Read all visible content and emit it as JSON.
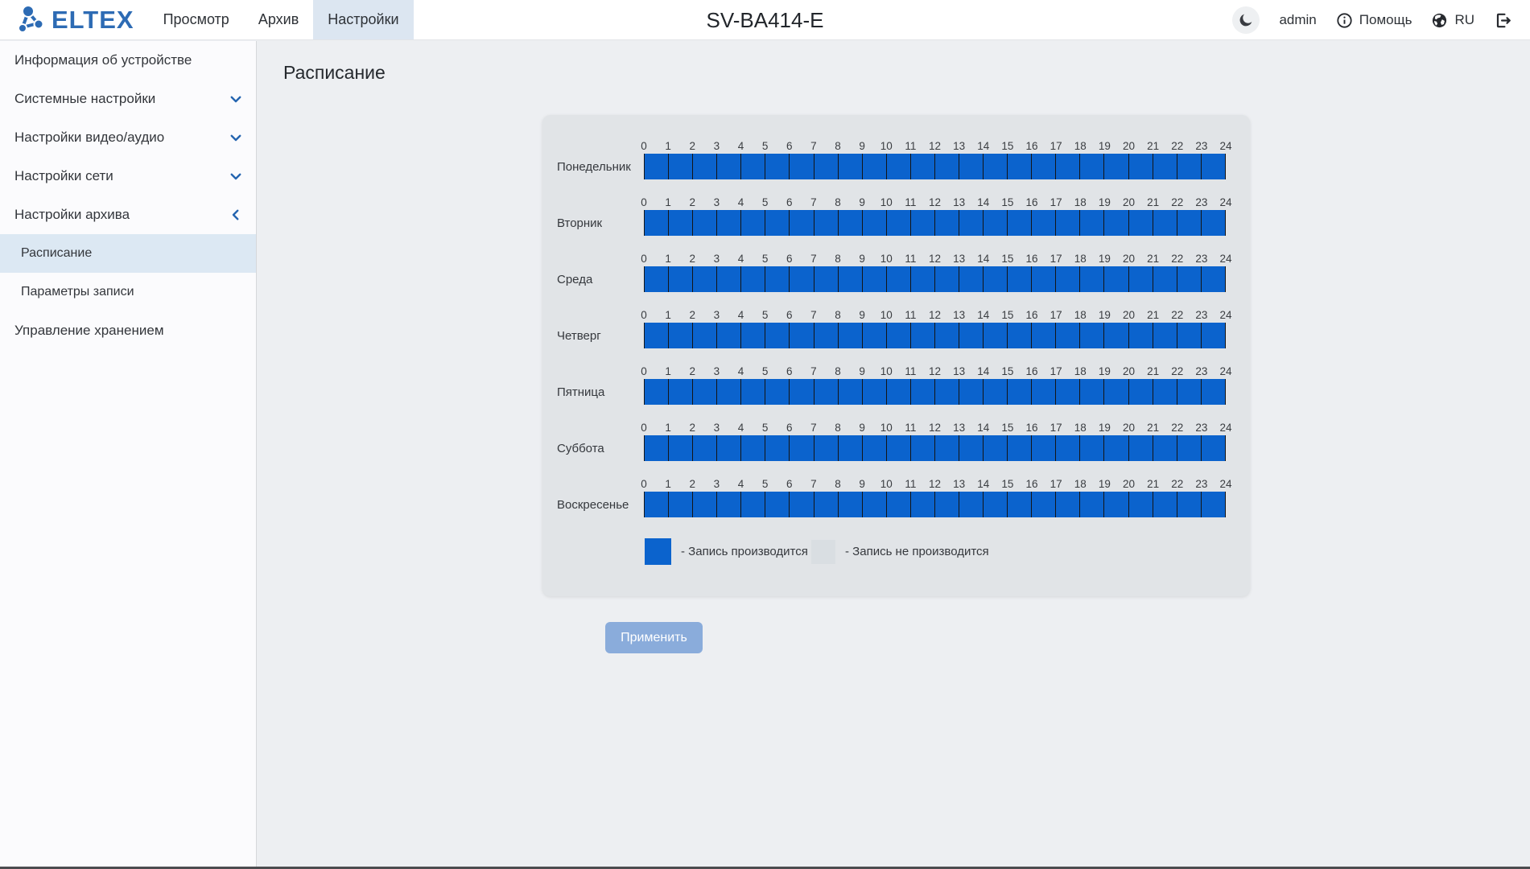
{
  "header": {
    "logo_text": "ELTEX",
    "nav": [
      {
        "label": "Просмотр",
        "active": false
      },
      {
        "label": "Архив",
        "active": false
      },
      {
        "label": "Настройки",
        "active": true
      }
    ],
    "device_title": "SV-BA414-E",
    "username": "admin",
    "help_label": "Помощь",
    "language": "RU"
  },
  "sidebar": {
    "items": [
      {
        "label": "Информация об устройстве"
      },
      {
        "label": "Системные настройки",
        "chevron": "down"
      },
      {
        "label": "Настройки видео/аудио",
        "chevron": "down"
      },
      {
        "label": "Настройки сети",
        "chevron": "down"
      },
      {
        "label": "Настройки архива",
        "chevron": "left"
      },
      {
        "label": "Расписание",
        "sub": true,
        "active": true
      },
      {
        "label": "Параметры записи",
        "sub": true
      },
      {
        "label": "Управление хранением"
      }
    ]
  },
  "main": {
    "heading": "Расписание",
    "apply_button_label": "Применить"
  },
  "schedule": {
    "hour_ticks": [
      "0",
      "1",
      "2",
      "3",
      "4",
      "5",
      "6",
      "7",
      "8",
      "9",
      "10",
      "11",
      "12",
      "13",
      "14",
      "15",
      "16",
      "17",
      "18",
      "19",
      "20",
      "21",
      "22",
      "23",
      "24"
    ],
    "days": [
      {
        "label": "Понедельник",
        "recording_hours": [
          [
            0,
            24
          ]
        ]
      },
      {
        "label": "Вторник",
        "recording_hours": [
          [
            0,
            24
          ]
        ]
      },
      {
        "label": "Среда",
        "recording_hours": [
          [
            0,
            24
          ]
        ]
      },
      {
        "label": "Четверг",
        "recording_hours": [
          [
            0,
            24
          ]
        ]
      },
      {
        "label": "Пятница",
        "recording_hours": [
          [
            0,
            24
          ]
        ]
      },
      {
        "label": "Суббота",
        "recording_hours": [
          [
            0,
            24
          ]
        ]
      },
      {
        "label": "Воскресенье",
        "recording_hours": [
          [
            0,
            24
          ]
        ]
      }
    ],
    "colors": {
      "recording": "#0b63cd",
      "not_recording": "#d9dee2"
    },
    "legend": [
      {
        "label": "- Запись производится",
        "color": "#0b63cd"
      },
      {
        "label": "- Запись не производится",
        "color": "#d9dee2"
      }
    ]
  }
}
